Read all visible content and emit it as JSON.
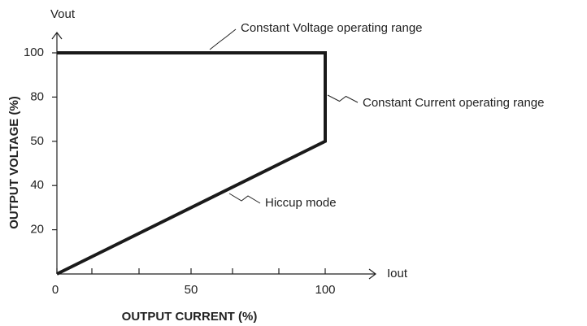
{
  "chart_data": {
    "type": "line",
    "x_axis_label": "OUTPUT CURRENT (%)",
    "y_axis_label": "OUTPUT VOLTAGE (%)",
    "x_axis_symbol": "Iout",
    "y_axis_symbol": "Vout",
    "xlim": [
      0,
      100
    ],
    "xticks": [
      0,
      50,
      100
    ],
    "ylim": [
      0,
      100
    ],
    "yticks": [
      20,
      40,
      50,
      80,
      100
    ],
    "series": [
      {
        "x": [
          0,
          100,
          100,
          0
        ],
        "values": [
          0,
          50,
          100,
          100
        ],
        "color": "#1a1a1a"
      }
    ],
    "annotations": [
      "Constant Voltage operating range",
      "Constant Current operating range",
      "Hiccup mode"
    ]
  }
}
